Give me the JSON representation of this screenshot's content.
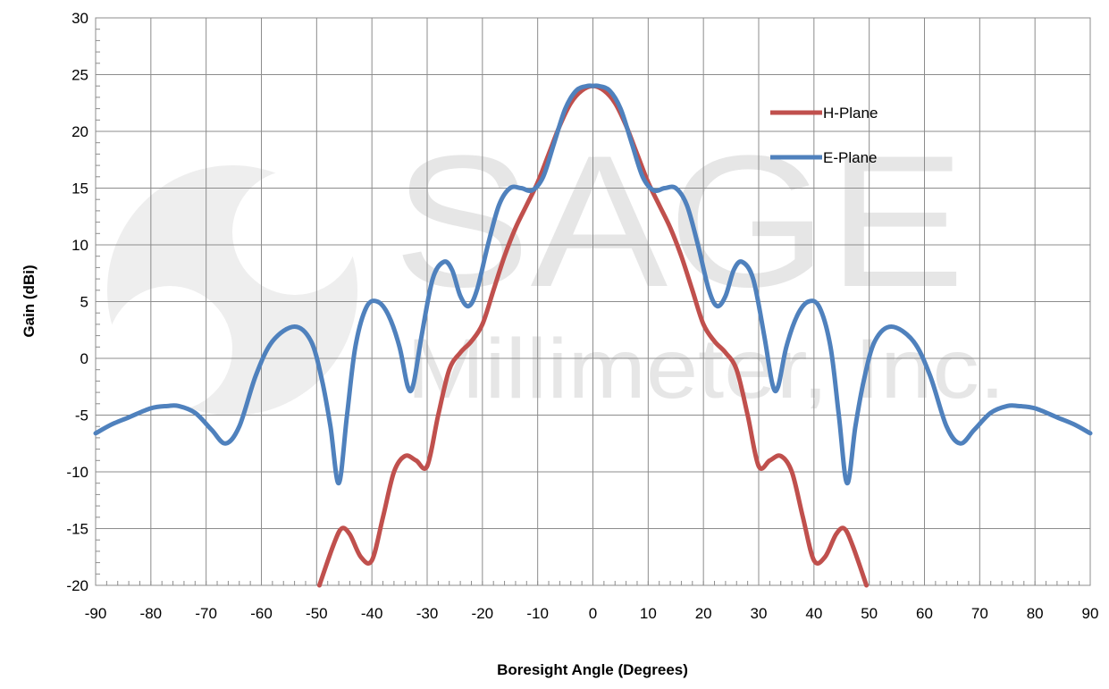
{
  "chart_data": {
    "type": "line",
    "title": "",
    "xlabel": "Boresight Angle (Degrees)",
    "ylabel": "Gain (dBi)",
    "xlim": [
      -90,
      90
    ],
    "ylim": [
      -20,
      30
    ],
    "xticks": [
      -90,
      -80,
      -70,
      -60,
      -50,
      -40,
      -30,
      -20,
      -10,
      0,
      10,
      20,
      30,
      40,
      50,
      60,
      70,
      80,
      90
    ],
    "yticks": [
      -20,
      -15,
      -10,
      -5,
      0,
      5,
      10,
      15,
      20,
      25,
      30
    ],
    "grid": true,
    "legend_position": "top-right",
    "watermark": {
      "line1": "SAGE",
      "line2": "Millimeter, Inc."
    },
    "series": [
      {
        "name": "H-Plane",
        "color": "#c0504d",
        "x": [
          -49.5,
          -47,
          -45.5,
          -44,
          -42,
          -40,
          -38,
          -36,
          -34,
          -32,
          -30,
          -28,
          -26,
          -24,
          -22,
          -20,
          -18,
          -16,
          -14,
          -12,
          -10,
          -8,
          -6,
          -4,
          -2,
          0,
          2,
          4,
          6,
          8,
          10,
          12,
          14,
          16,
          18,
          20,
          22,
          24,
          26,
          28,
          30,
          32,
          34,
          36,
          38,
          40,
          42,
          44,
          45.5,
          47,
          49.5
        ],
        "values": [
          -20,
          -16.5,
          -15,
          -15.5,
          -17.5,
          -17.8,
          -14,
          -10,
          -8.6,
          -9,
          -9.5,
          -5,
          -1,
          0.5,
          1.5,
          3,
          6,
          9,
          11.5,
          13.5,
          15.5,
          18,
          20.5,
          22.5,
          23.6,
          24,
          23.6,
          22.5,
          20.5,
          18,
          15.5,
          13.5,
          11.5,
          9,
          6,
          3,
          1.5,
          0.5,
          -1,
          -5,
          -9.5,
          -9,
          -8.6,
          -10,
          -14,
          -17.8,
          -17.5,
          -15.5,
          -15,
          -16.5,
          -20
        ]
      },
      {
        "name": "E-Plane",
        "color": "#4f81bd",
        "x": [
          -90,
          -87,
          -84,
          -80,
          -77,
          -75,
          -72,
          -69,
          -66.5,
          -64,
          -61,
          -58,
          -54,
          -51,
          -49,
          -47.5,
          -46,
          -44.5,
          -43,
          -41,
          -39,
          -37,
          -35,
          -33.5,
          -32.5,
          -31,
          -29,
          -27,
          -25.5,
          -24,
          -22.5,
          -21,
          -19,
          -17,
          -15,
          -13,
          -11,
          -9,
          -7,
          -5,
          -3,
          -1,
          0,
          1,
          3,
          5,
          7,
          9,
          11,
          13,
          15,
          17,
          19,
          21,
          22.5,
          24,
          25.5,
          27,
          29,
          31,
          32.5,
          33.5,
          35,
          37,
          39,
          41,
          43,
          44.5,
          46,
          47.5,
          49,
          51,
          54,
          58,
          61,
          64,
          66.5,
          69,
          72,
          75,
          77,
          80,
          84,
          87,
          90
        ],
        "values": [
          -6.6,
          -5.8,
          -5.2,
          -4.4,
          -4.2,
          -4.2,
          -4.8,
          -6.3,
          -7.5,
          -6,
          -1.5,
          1.5,
          2.8,
          1.5,
          -2,
          -6,
          -11,
          -5,
          1,
          4.5,
          5,
          3.8,
          1,
          -2.5,
          -2.3,
          2,
          7,
          8.5,
          7.8,
          5.5,
          4.6,
          6,
          10,
          13.5,
          15,
          15,
          14.8,
          16,
          19,
          22,
          23.6,
          24,
          24,
          24,
          23.6,
          22,
          19,
          16,
          14.8,
          15,
          15,
          13.5,
          10,
          6,
          4.6,
          5.5,
          7.8,
          8.5,
          7,
          2,
          -2.3,
          -2.5,
          1,
          3.8,
          5,
          4.5,
          1,
          -5,
          -11,
          -6,
          -2,
          1.5,
          2.8,
          1.5,
          -1.5,
          -6,
          -7.5,
          -6.3,
          -4.8,
          -4.2,
          -4.2,
          -4.4,
          -5.2,
          -5.8,
          -6.6
        ]
      }
    ]
  }
}
